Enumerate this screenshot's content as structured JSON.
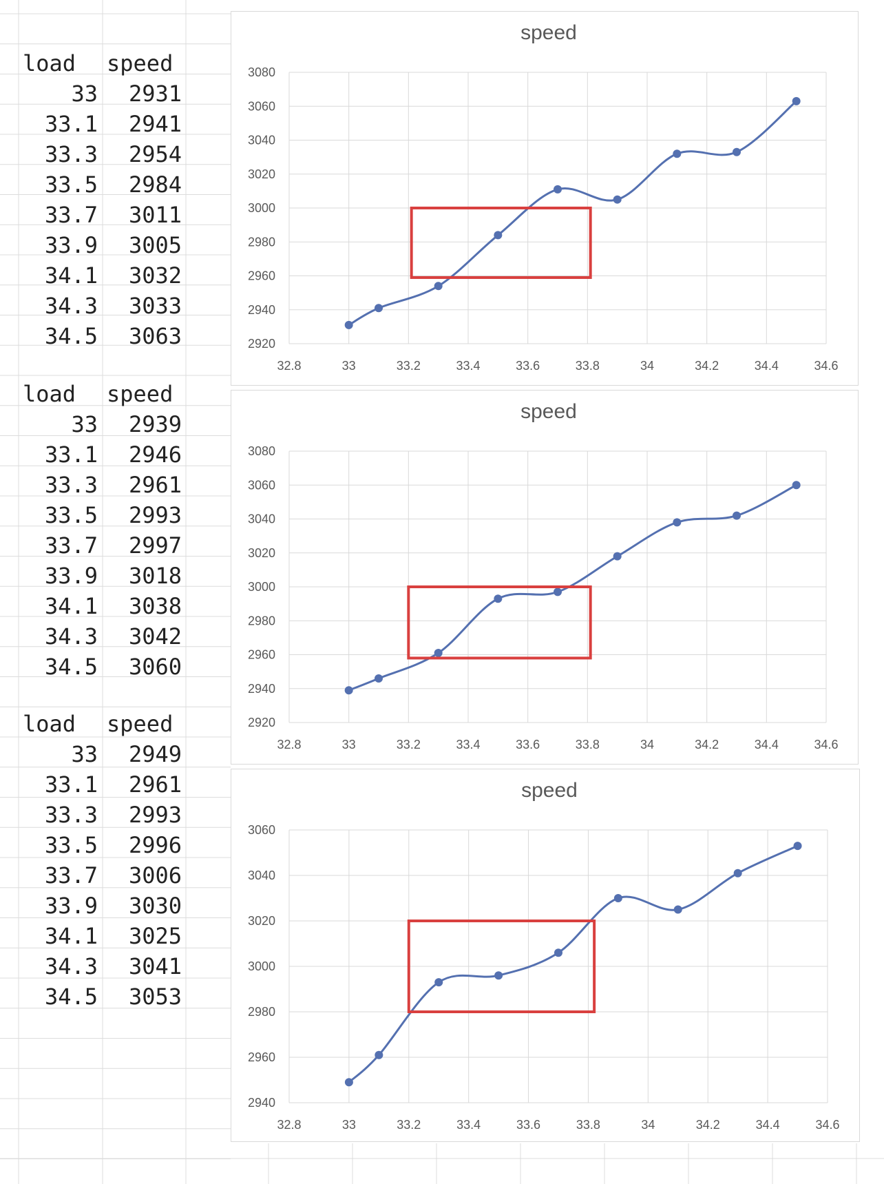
{
  "tables": [
    {
      "headers": [
        "load",
        "speed"
      ],
      "rows": [
        [
          "33",
          "2931"
        ],
        [
          "33.1",
          "2941"
        ],
        [
          "33.3",
          "2954"
        ],
        [
          "33.5",
          "2984"
        ],
        [
          "33.7",
          "3011"
        ],
        [
          "33.9",
          "3005"
        ],
        [
          "34.1",
          "3032"
        ],
        [
          "34.3",
          "3033"
        ],
        [
          "34.5",
          "3063"
        ]
      ]
    },
    {
      "headers": [
        "load",
        "speed"
      ],
      "rows": [
        [
          "33",
          "2939"
        ],
        [
          "33.1",
          "2946"
        ],
        [
          "33.3",
          "2961"
        ],
        [
          "33.5",
          "2993"
        ],
        [
          "33.7",
          "2997"
        ],
        [
          "33.9",
          "3018"
        ],
        [
          "34.1",
          "3038"
        ],
        [
          "34.3",
          "3042"
        ],
        [
          "34.5",
          "3060"
        ]
      ]
    },
    {
      "headers": [
        "load",
        "speed"
      ],
      "rows": [
        [
          "33",
          "2949"
        ],
        [
          "33.1",
          "2961"
        ],
        [
          "33.3",
          "2993"
        ],
        [
          "33.5",
          "2996"
        ],
        [
          "33.7",
          "3006"
        ],
        [
          "33.9",
          "3030"
        ],
        [
          "34.1",
          "3025"
        ],
        [
          "34.3",
          "3041"
        ],
        [
          "34.5",
          "3053"
        ]
      ]
    }
  ],
  "chart_data": [
    {
      "type": "line",
      "title": "speed",
      "xlabel": "",
      "ylabel": "",
      "xlim": [
        32.8,
        34.6
      ],
      "ylim": [
        2920,
        3080
      ],
      "xticks": [
        "32.8",
        "33",
        "33.2",
        "33.4",
        "33.6",
        "33.8",
        "34",
        "34.2",
        "34.4",
        "34.6"
      ],
      "yticks": [
        "2920",
        "2940",
        "2960",
        "2980",
        "3000",
        "3020",
        "3040",
        "3060",
        "3080"
      ],
      "grid": true,
      "smooth": true,
      "line_color": "#5470b0",
      "x": [
        33,
        33.1,
        33.3,
        33.5,
        33.7,
        33.9,
        34.1,
        34.3,
        34.5
      ],
      "series": [
        {
          "values": [
            2931,
            2941,
            2954,
            2984,
            3011,
            3005,
            3032,
            3033,
            3063
          ]
        }
      ],
      "highlight_box": {
        "x": [
          33.21,
          33.81
        ],
        "y": [
          2959,
          3000
        ],
        "color": "#d9403f"
      }
    },
    {
      "type": "line",
      "title": "speed",
      "xlabel": "",
      "ylabel": "",
      "xlim": [
        32.8,
        34.6
      ],
      "ylim": [
        2920,
        3080
      ],
      "xticks": [
        "32.8",
        "33",
        "33.2",
        "33.4",
        "33.6",
        "33.8",
        "34",
        "34.2",
        "34.4",
        "34.6"
      ],
      "yticks": [
        "2920",
        "2940",
        "2960",
        "2980",
        "3000",
        "3020",
        "3040",
        "3060",
        "3080"
      ],
      "grid": true,
      "smooth": true,
      "line_color": "#5470b0",
      "x": [
        33,
        33.1,
        33.3,
        33.5,
        33.7,
        33.9,
        34.1,
        34.3,
        34.5
      ],
      "series": [
        {
          "values": [
            2939,
            2946,
            2961,
            2993,
            2997,
            3018,
            3038,
            3042,
            3060
          ]
        }
      ],
      "highlight_box": {
        "x": [
          33.2,
          33.81
        ],
        "y": [
          2958,
          3000
        ],
        "color": "#d9403f"
      }
    },
    {
      "type": "line",
      "title": "speed",
      "xlabel": "",
      "ylabel": "",
      "xlim": [
        32.8,
        34.6
      ],
      "ylim": [
        2940,
        3060
      ],
      "xticks": [
        "32.8",
        "33",
        "33.2",
        "33.4",
        "33.6",
        "33.8",
        "34",
        "34.2",
        "34.4",
        "34.6"
      ],
      "yticks": [
        "2940",
        "2960",
        "2980",
        "3000",
        "3020",
        "3040",
        "3060"
      ],
      "grid": true,
      "smooth": true,
      "line_color": "#5470b0",
      "x": [
        33,
        33.1,
        33.3,
        33.5,
        33.7,
        33.9,
        34.1,
        34.3,
        34.5
      ],
      "series": [
        {
          "values": [
            2949,
            2961,
            2993,
            2996,
            3006,
            3030,
            3025,
            3041,
            3053
          ]
        }
      ],
      "highlight_box": {
        "x": [
          33.2,
          33.82
        ],
        "y": [
          2980,
          3020
        ],
        "color": "#d9403f"
      }
    }
  ]
}
